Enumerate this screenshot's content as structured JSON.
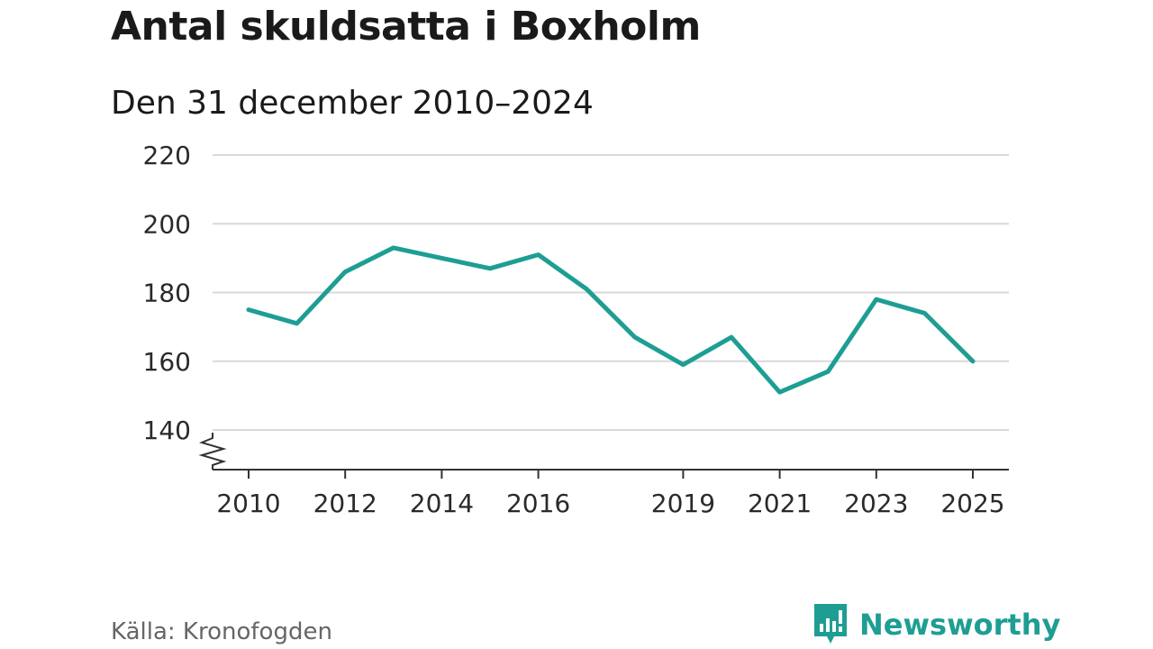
{
  "header": {
    "title": "Antal skuldsatta i Boxholm",
    "subtitle": "Den 31 december 2010–2024"
  },
  "footer": {
    "source": "Källa: Kronofogden",
    "brand": "Newsworthy",
    "brand_icon": "newsworthy-logo-icon"
  },
  "colors": {
    "line": "#1e9e93",
    "grid": "#d9d9d9",
    "axis": "#333333",
    "brand": "#1e9e93"
  },
  "chart_data": {
    "type": "line",
    "title": "Antal skuldsatta i Boxholm",
    "subtitle": "Den 31 december 2010–2024",
    "xlabel": "",
    "ylabel": "",
    "x": [
      2010,
      2011,
      2012,
      2013,
      2014,
      2015,
      2016,
      2017,
      2018,
      2019,
      2020,
      2021,
      2022,
      2023,
      2024,
      2025
    ],
    "series": [
      {
        "values": [
          175,
          171,
          186,
          193,
          190,
          187,
          191,
          181,
          167,
          159,
          167,
          151,
          157,
          178,
          174,
          160
        ]
      }
    ],
    "ylim": [
      140,
      220
    ],
    "yticks": [
      140,
      160,
      180,
      200,
      220
    ],
    "xticks": [
      "2010",
      "2012",
      "2014",
      "2016",
      "2019",
      "2021",
      "2023",
      "2025"
    ],
    "y_axis_break": true,
    "grid": true,
    "legend": "none"
  }
}
